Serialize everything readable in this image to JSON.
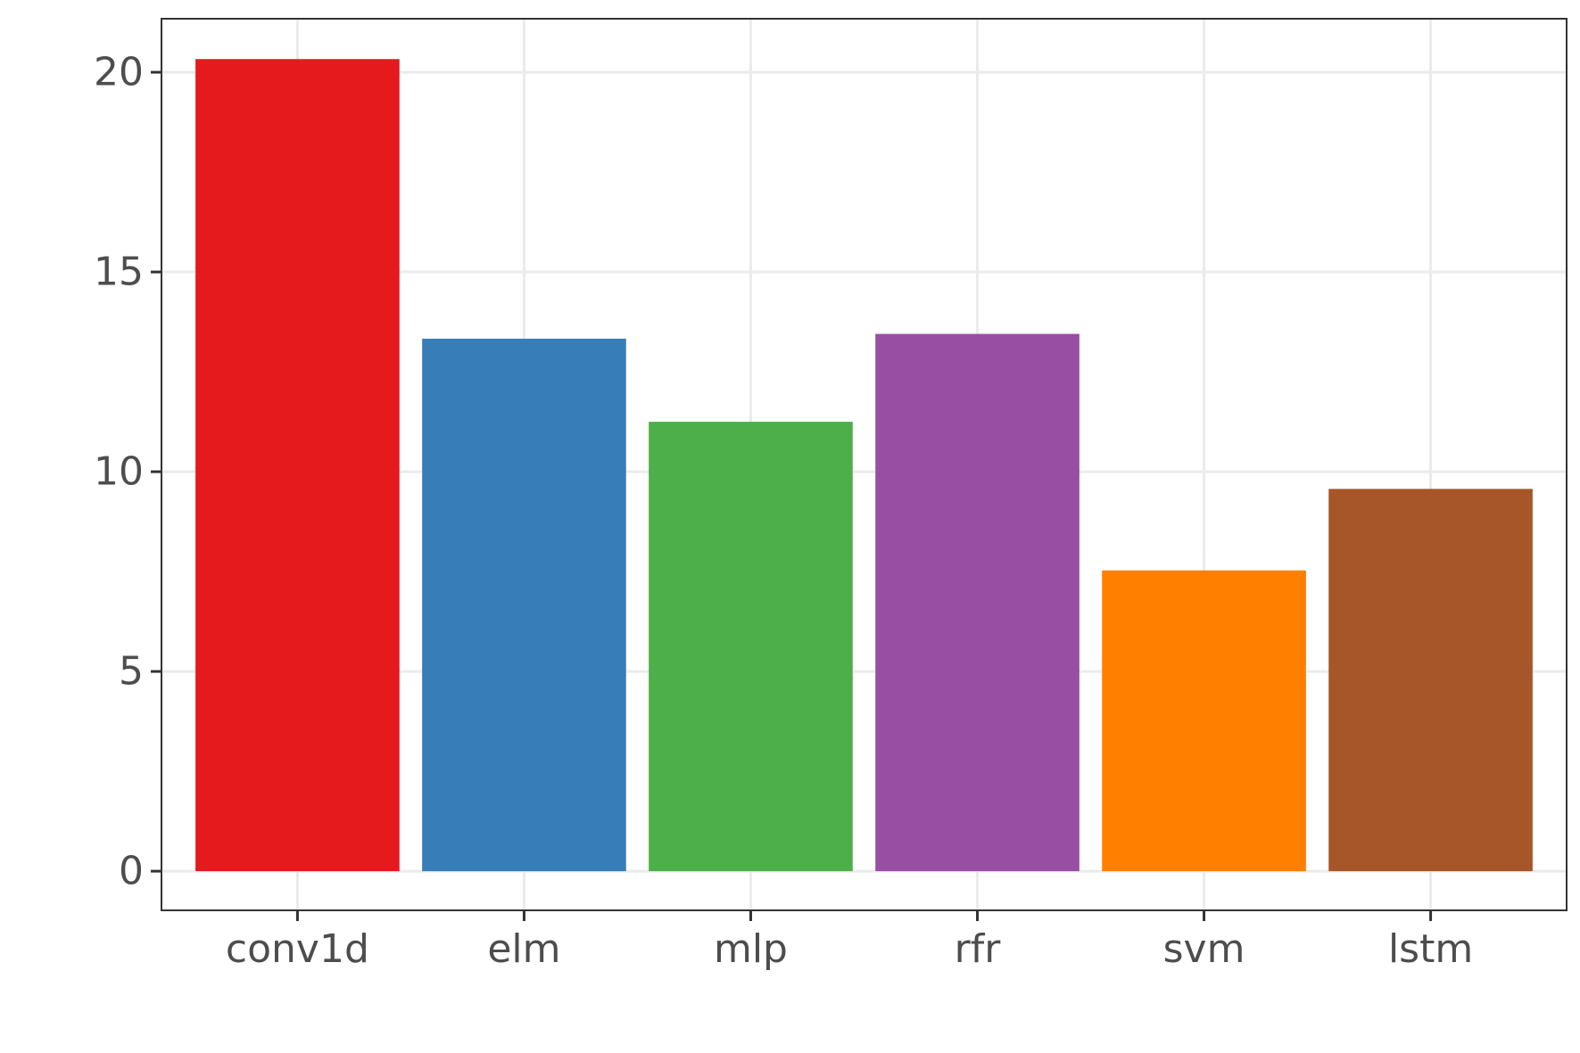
{
  "chart_data": {
    "type": "bar",
    "title": "",
    "xlabel": "",
    "ylabel": "",
    "categories": [
      "conv1d",
      "elm",
      "mlp",
      "rfr",
      "svm",
      "lstm"
    ],
    "values": [
      20.33,
      13.33,
      11.25,
      13.45,
      7.53,
      9.57
    ],
    "colors": [
      "#E41A1C",
      "#377EB8",
      "#4DAF4A",
      "#984EA3",
      "#FF7F00",
      "#A65628"
    ],
    "ylim": [
      -0.98,
      21.34
    ],
    "yticks": [
      0,
      5,
      10,
      15,
      20
    ],
    "grid": true,
    "legend": "none",
    "style": {
      "panel_border_color": "#333333",
      "grid_color": "#EBEBEB",
      "tick_color": "#333333",
      "tick_label_color": "#4D4D4D",
      "background": "#FFFFFF"
    }
  }
}
